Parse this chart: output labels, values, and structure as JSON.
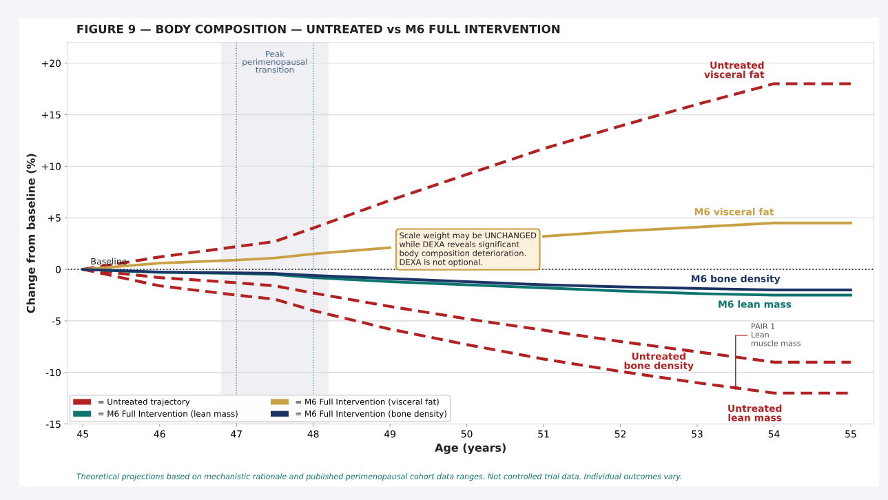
{
  "chart_data": {
    "type": "line",
    "title": "FIGURE 9 — BODY COMPOSITION — UNTREATED vs M6 FULL INTERVENTION",
    "xlabel": "Age (years)",
    "ylabel": "Change from baseline (%)",
    "xlim": [
      44.8,
      55.3
    ],
    "xticks": [
      45,
      46,
      47,
      48,
      49,
      50,
      51,
      52,
      53,
      54,
      55
    ],
    "ylim": [
      -15,
      22
    ],
    "yticks": [
      {
        "value": -15,
        "label": "-15"
      },
      {
        "value": -10,
        "label": "-10"
      },
      {
        "value": -5,
        "label": "-5"
      },
      0,
      {
        "value": 5,
        "label": "+5"
      },
      {
        "value": 10,
        "label": "+10"
      },
      {
        "value": 15,
        "label": "+15"
      },
      {
        "value": 20,
        "label": "+20"
      }
    ],
    "grid": "y",
    "legend": "bottom left",
    "marker": "none",
    "x": [
      45,
      46,
      47,
      47.5,
      48,
      49,
      50,
      51,
      52,
      53,
      54,
      55
    ],
    "series": [
      {
        "name": "= Untreated trajectory",
        "color": "#b22222",
        "line_style": "dashed",
        "values": [
          0,
          1.2,
          2.2,
          2.7,
          4.0,
          6.7,
          9.2,
          11.7,
          13.9,
          16.0,
          18,
          18
        ]
      },
      {
        "color": "#b22222",
        "line_style": "dashed",
        "values": [
          0,
          -0.8,
          -1.3,
          -1.6,
          -2.3,
          -3.6,
          -4.8,
          -5.9,
          -7.0,
          -8.0,
          -9,
          -9
        ]
      },
      {
        "color": "#b22222",
        "line_style": "dashed",
        "values": [
          0,
          -1.6,
          -2.5,
          -2.9,
          -4.0,
          -5.8,
          -7.3,
          -8.7,
          -9.9,
          -11.0,
          -12,
          -12
        ]
      },
      {
        "name": "= M6 Full Intervention (lean mass)",
        "color": "#0e7470",
        "line_style": "solid",
        "values": [
          0,
          -0.3,
          -0.4,
          -0.5,
          -0.8,
          -1.2,
          -1.5,
          -1.8,
          -2.1,
          -2.35,
          -2.5,
          -2.5
        ]
      },
      {
        "name": "= M6 Full Intervention (visceral fat)",
        "color": "#c9a045",
        "line_style": "solid",
        "values": [
          0,
          0.6,
          0.9,
          1.1,
          1.5,
          2.1,
          null,
          3.2,
          3.7,
          4.1,
          4.5,
          4.5
        ]
      },
      {
        "name": "= M6 Full Intervention (bone density)",
        "color": "#1c3465",
        "line_style": "solid",
        "values": [
          0,
          -0.25,
          -0.35,
          -0.4,
          -0.6,
          -0.9,
          -1.2,
          -1.5,
          -1.7,
          -1.85,
          -2.0,
          -2.0
        ]
      }
    ],
    "bands": [
      {
        "axis": "x",
        "from": 46.8,
        "to": 48.2,
        "label": "Peak\nperimenopausal\ntransition",
        "color": "#efeff4"
      }
    ],
    "ref_lines": [
      {
        "axis": "x",
        "value": 47,
        "color": "#6b7a90",
        "line_style": "dotted"
      },
      {
        "axis": "x",
        "value": 48,
        "color": "#4a8fa0",
        "line_style": "dotted"
      },
      {
        "axis": "y",
        "value": 0,
        "label": "Baseline",
        "color": "#333333",
        "line_style": "dotted"
      }
    ],
    "annotations": [
      {
        "text": "Untreated\nvisceral fat",
        "x": 54,
        "y": 18
      },
      {
        "text": "M6 visceral fat",
        "x": 54,
        "y": 4.5
      },
      {
        "text": "M6 bone density",
        "x": 53.5,
        "y": -1.9
      },
      {
        "text": "M6 lean mass",
        "x": 53.5,
        "y": -2.45
      },
      {
        "text": "Untreated\nbone density",
        "x": 52.5,
        "y": -7.5
      },
      {
        "text": "Untreated\nlean mass",
        "x": 54,
        "y": -12
      },
      "Scale weight may be UNCHANGED\nwhile DEXA reveals significant\nbody composition deterioration.\nDEXA is not optional.",
      {
        "text": "PAIR 1\nLean\nmuscle mass",
        "x": 53.5,
        "y": -11.9
      },
      "Theoretical projections based on mechanistic rationale and published perimenopausal cohort data ranges. Not controlled trial data. Individual outcomes vary."
    ]
  }
}
